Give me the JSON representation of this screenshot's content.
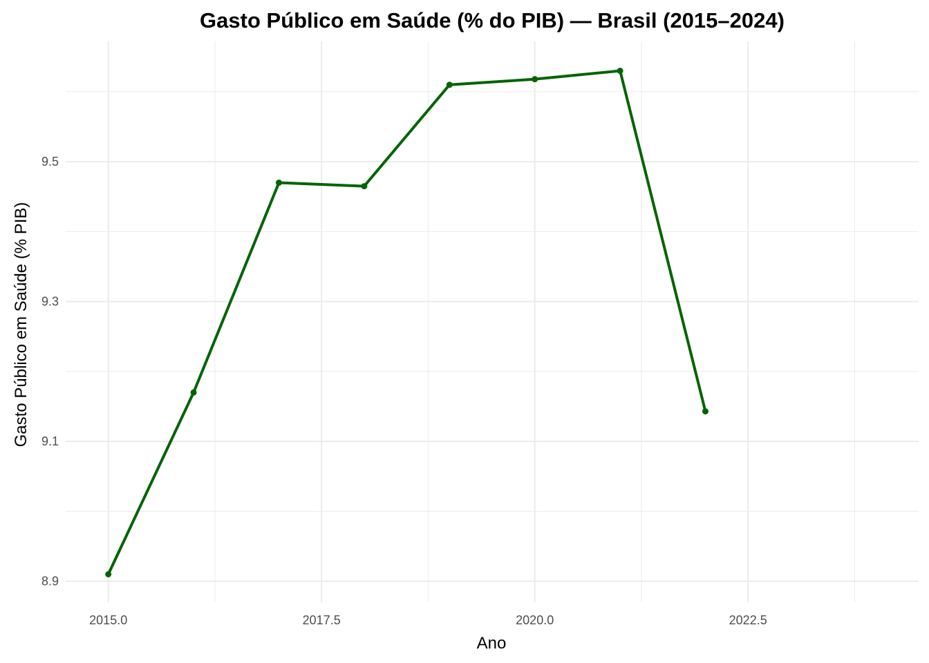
{
  "chart_data": {
    "type": "line",
    "title": "Gasto Público em Saúde (% do PIB) — Brasil (2015–2024)",
    "xlabel": "Ano",
    "ylabel": "Gasto Público em Saúde (% PIB)",
    "x": [
      2015,
      2016,
      2017,
      2018,
      2019,
      2020,
      2021,
      2022
    ],
    "series": [
      {
        "values": [
          8.91,
          9.17,
          9.47,
          9.465,
          9.61,
          9.618,
          9.63,
          9.143
        ]
      }
    ],
    "xlim": [
      2014.5,
      2024.5
    ],
    "ylim": [
      8.87,
      9.672
    ],
    "x_ticks": [
      2015.0,
      2017.5,
      2020.0,
      2022.5
    ],
    "x_tick_labels": [
      "2015.0",
      "2017.5",
      "2020.0",
      "2022.5"
    ],
    "y_ticks": [
      8.9,
      9.1,
      9.3,
      9.5
    ],
    "y_tick_labels": [
      "8.9",
      "9.1",
      "9.3",
      "9.5"
    ],
    "x_minor_ticks": [
      2016.25,
      2018.75,
      2021.25,
      2023.75
    ],
    "y_minor_ticks": [
      9.0,
      9.2,
      9.4,
      9.6
    ],
    "grid": true,
    "line_color": "#006400",
    "grid_color": "#ebebeb"
  }
}
